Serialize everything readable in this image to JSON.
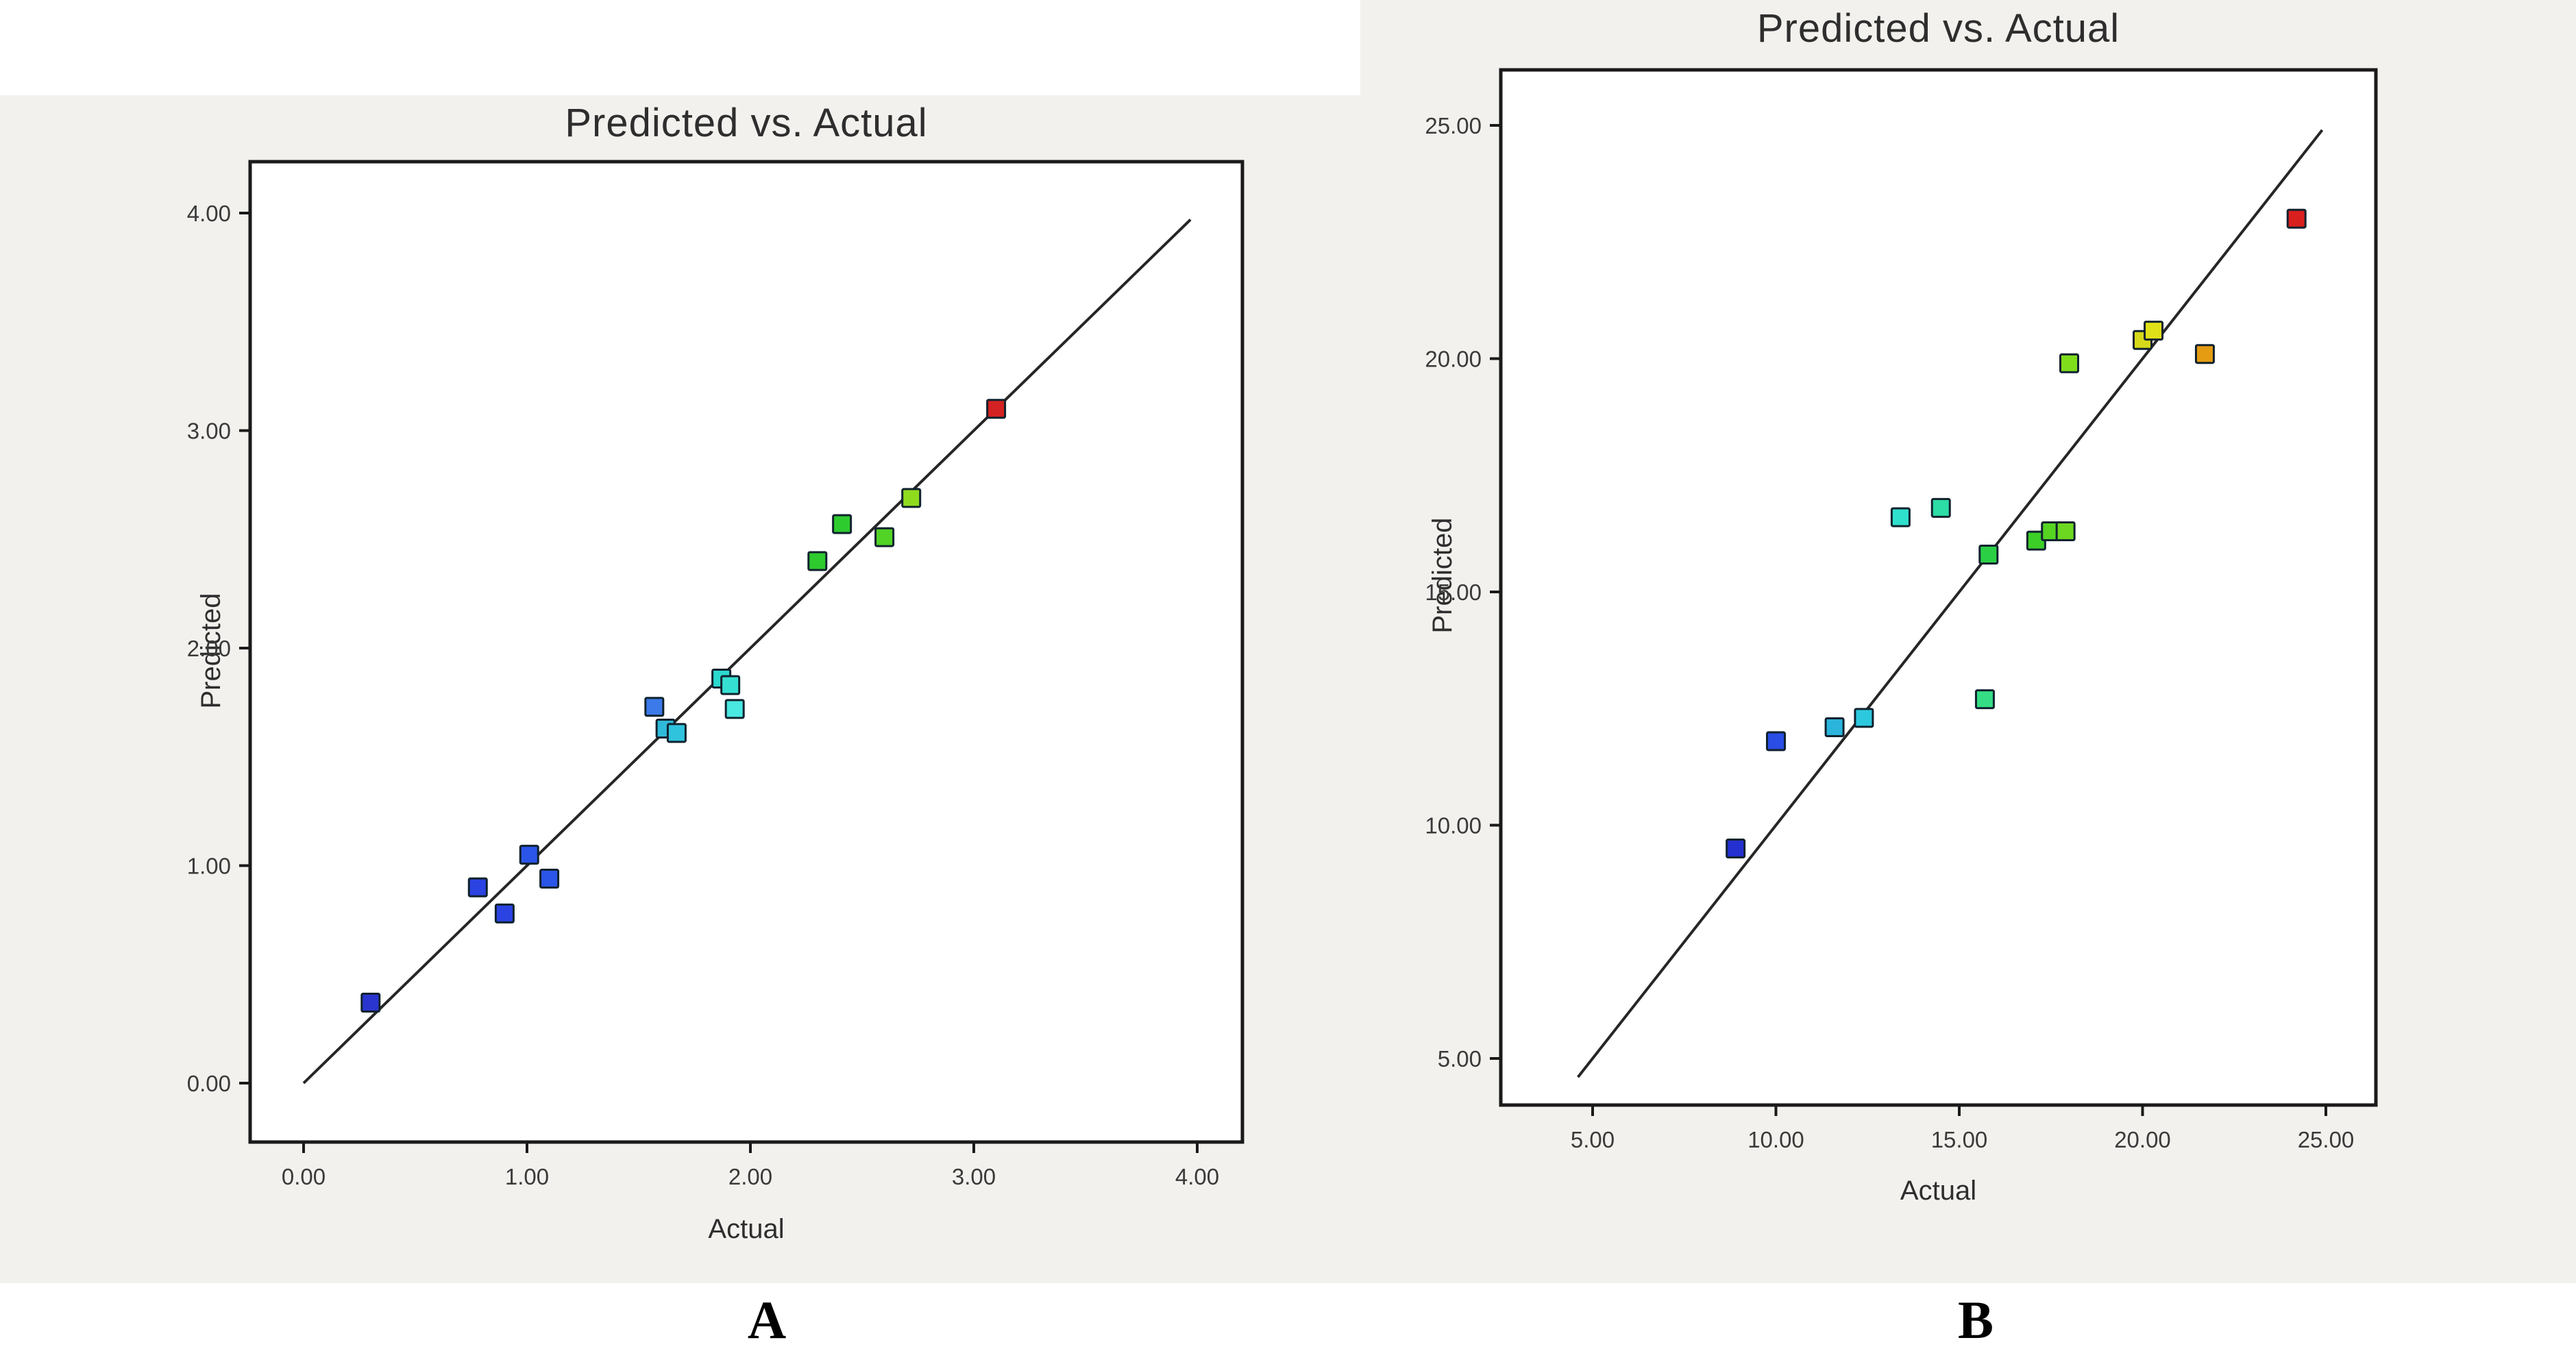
{
  "panel_labels": [
    "A",
    "B"
  ],
  "chart_data": [
    {
      "type": "scatter",
      "title": "Predicted vs. Actual",
      "xlabel": "Actual",
      "ylabel": "Predicted",
      "xlim": [
        0,
        4
      ],
      "ylim": [
        0,
        4
      ],
      "grid": false,
      "legend": "none",
      "xticks": [
        0,
        1,
        2,
        3,
        4
      ],
      "xtick_labels": [
        "0.00",
        "1.00",
        "2.00",
        "3.00",
        "4.00"
      ],
      "yticks": [
        0,
        1,
        2,
        3,
        4
      ],
      "ytick_labels": [
        "0.00",
        "1.00",
        "2.00",
        "3.00",
        "4.00"
      ],
      "identity_line": {
        "x": [
          0.0,
          3.97
        ],
        "y": [
          0.0,
          3.97
        ]
      },
      "points": [
        {
          "x": 0.3,
          "y": 0.37,
          "color": "#2a35cf"
        },
        {
          "x": 0.78,
          "y": 0.9,
          "color": "#2a43e2"
        },
        {
          "x": 0.9,
          "y": 0.78,
          "color": "#2a43e2"
        },
        {
          "x": 1.01,
          "y": 1.05,
          "color": "#2a55e8"
        },
        {
          "x": 1.1,
          "y": 0.94,
          "color": "#2a55e8"
        },
        {
          "x": 1.57,
          "y": 1.73,
          "color": "#3b7ae8"
        },
        {
          "x": 1.62,
          "y": 1.63,
          "color": "#2fb9d9"
        },
        {
          "x": 1.67,
          "y": 1.61,
          "color": "#2fc3dd"
        },
        {
          "x": 1.87,
          "y": 1.86,
          "color": "#2bd9cf"
        },
        {
          "x": 1.91,
          "y": 1.83,
          "color": "#35e0d2"
        },
        {
          "x": 1.93,
          "y": 1.72,
          "color": "#49e8e0"
        },
        {
          "x": 2.3,
          "y": 2.4,
          "color": "#2ecb2e"
        },
        {
          "x": 2.41,
          "y": 2.57,
          "color": "#2ecb2e"
        },
        {
          "x": 2.6,
          "y": 2.51,
          "color": "#52d426"
        },
        {
          "x": 2.72,
          "y": 2.69,
          "color": "#8fdc1f"
        },
        {
          "x": 3.1,
          "y": 3.1,
          "color": "#d42222"
        }
      ]
    },
    {
      "type": "scatter",
      "title": "Predicted vs. Actual",
      "xlabel": "Actual",
      "ylabel": "Predicted",
      "xlim": [
        5,
        25
      ],
      "ylim": [
        5,
        25
      ],
      "grid": false,
      "legend": "none",
      "xticks": [
        5,
        10,
        15,
        20,
        25
      ],
      "xtick_labels": [
        "5.00",
        "10.00",
        "15.00",
        "20.00",
        "25.00"
      ],
      "yticks": [
        5,
        10,
        15,
        20,
        25
      ],
      "ytick_labels": [
        "5.00",
        "10.00",
        "15.00",
        "20.00",
        "25.00"
      ],
      "identity_line": {
        "x": [
          4.6,
          24.9
        ],
        "y": [
          4.6,
          24.9
        ]
      },
      "points": [
        {
          "x": 8.9,
          "y": 9.5,
          "color": "#2430cf"
        },
        {
          "x": 10.0,
          "y": 11.8,
          "color": "#2a4de5"
        },
        {
          "x": 11.6,
          "y": 12.1,
          "color": "#2bb4dc"
        },
        {
          "x": 12.4,
          "y": 12.3,
          "color": "#2cc9de"
        },
        {
          "x": 13.4,
          "y": 16.6,
          "color": "#2fe0cd"
        },
        {
          "x": 14.5,
          "y": 16.8,
          "color": "#2cdda5"
        },
        {
          "x": 15.7,
          "y": 12.7,
          "color": "#35de84"
        },
        {
          "x": 15.8,
          "y": 15.8,
          "color": "#2bcf45"
        },
        {
          "x": 17.1,
          "y": 16.1,
          "color": "#3ccf27"
        },
        {
          "x": 17.5,
          "y": 16.3,
          "color": "#55d422"
        },
        {
          "x": 17.9,
          "y": 16.3,
          "color": "#6cd81f"
        },
        {
          "x": 18.0,
          "y": 19.9,
          "color": "#7fdd1c"
        },
        {
          "x": 20.0,
          "y": 20.4,
          "color": "#d6d81a"
        },
        {
          "x": 20.3,
          "y": 20.6,
          "color": "#e0e018"
        },
        {
          "x": 21.7,
          "y": 20.1,
          "color": "#e59b12"
        },
        {
          "x": 24.2,
          "y": 23.0,
          "color": "#da1f1f"
        }
      ]
    }
  ],
  "style": {
    "panel_bg": "#f2f1ee",
    "plot_bg": "#ffffff",
    "border_color": "#1a1a1a",
    "line_color": "#262626",
    "point_outline": "#10222e"
  }
}
